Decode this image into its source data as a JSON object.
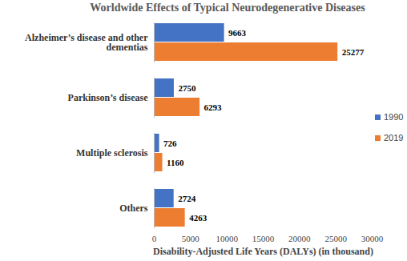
{
  "chart_data": {
    "type": "bar",
    "orientation": "horizontal",
    "title": "Worldwide Effects of Typical Neurodegenerative Diseases",
    "x_label": "Disability-Adjusted Life Years (DALYs) (in thousand)",
    "categories": [
      "Alzheimer’s disease and other dementias",
      "Parkinson’s disease",
      "Multiple sclerosis",
      "Others"
    ],
    "series": [
      {
        "name": "1990",
        "color": "#4472c4",
        "values": [
          9663,
          2750,
          726,
          2724
        ]
      },
      {
        "name": "2019",
        "color": "#ed7d31",
        "values": [
          25277,
          6293,
          1160,
          4263
        ]
      }
    ],
    "xlim": [
      0,
      30000
    ],
    "xticks": [
      0,
      5000,
      10000,
      15000,
      20000,
      25000,
      30000
    ],
    "grid": false,
    "data_labels": true,
    "legend": "right"
  }
}
